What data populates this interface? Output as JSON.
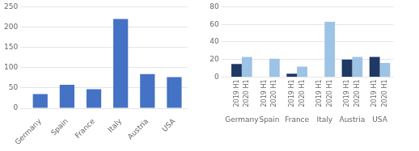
{
  "chart_data": [
    {
      "type": "bar",
      "categories": [
        "Germany",
        "Spain",
        "France",
        "Italy",
        "Austria",
        "USA"
      ],
      "values": [
        35,
        58,
        47,
        220,
        84,
        77
      ],
      "color": "#4472C4",
      "ylim": [
        0,
        250
      ],
      "yticks": [
        0,
        50,
        100,
        150,
        200,
        250
      ],
      "grid": true
    },
    {
      "type": "bar",
      "categories": [
        "Germany",
        "Spain",
        "France",
        "Italy",
        "Austria",
        "USA"
      ],
      "series": [
        {
          "name": "2019 H1",
          "color": "#1F3864",
          "values": [
            15,
            0,
            4,
            0,
            20,
            23
          ]
        },
        {
          "name": "2020 H1",
          "color": "#9DC3E6",
          "values": [
            23,
            21,
            12,
            63,
            23,
            16
          ]
        }
      ],
      "ylim": [
        0,
        80
      ],
      "yticks": [
        0,
        20,
        40,
        60,
        80
      ],
      "grid": true
    }
  ]
}
